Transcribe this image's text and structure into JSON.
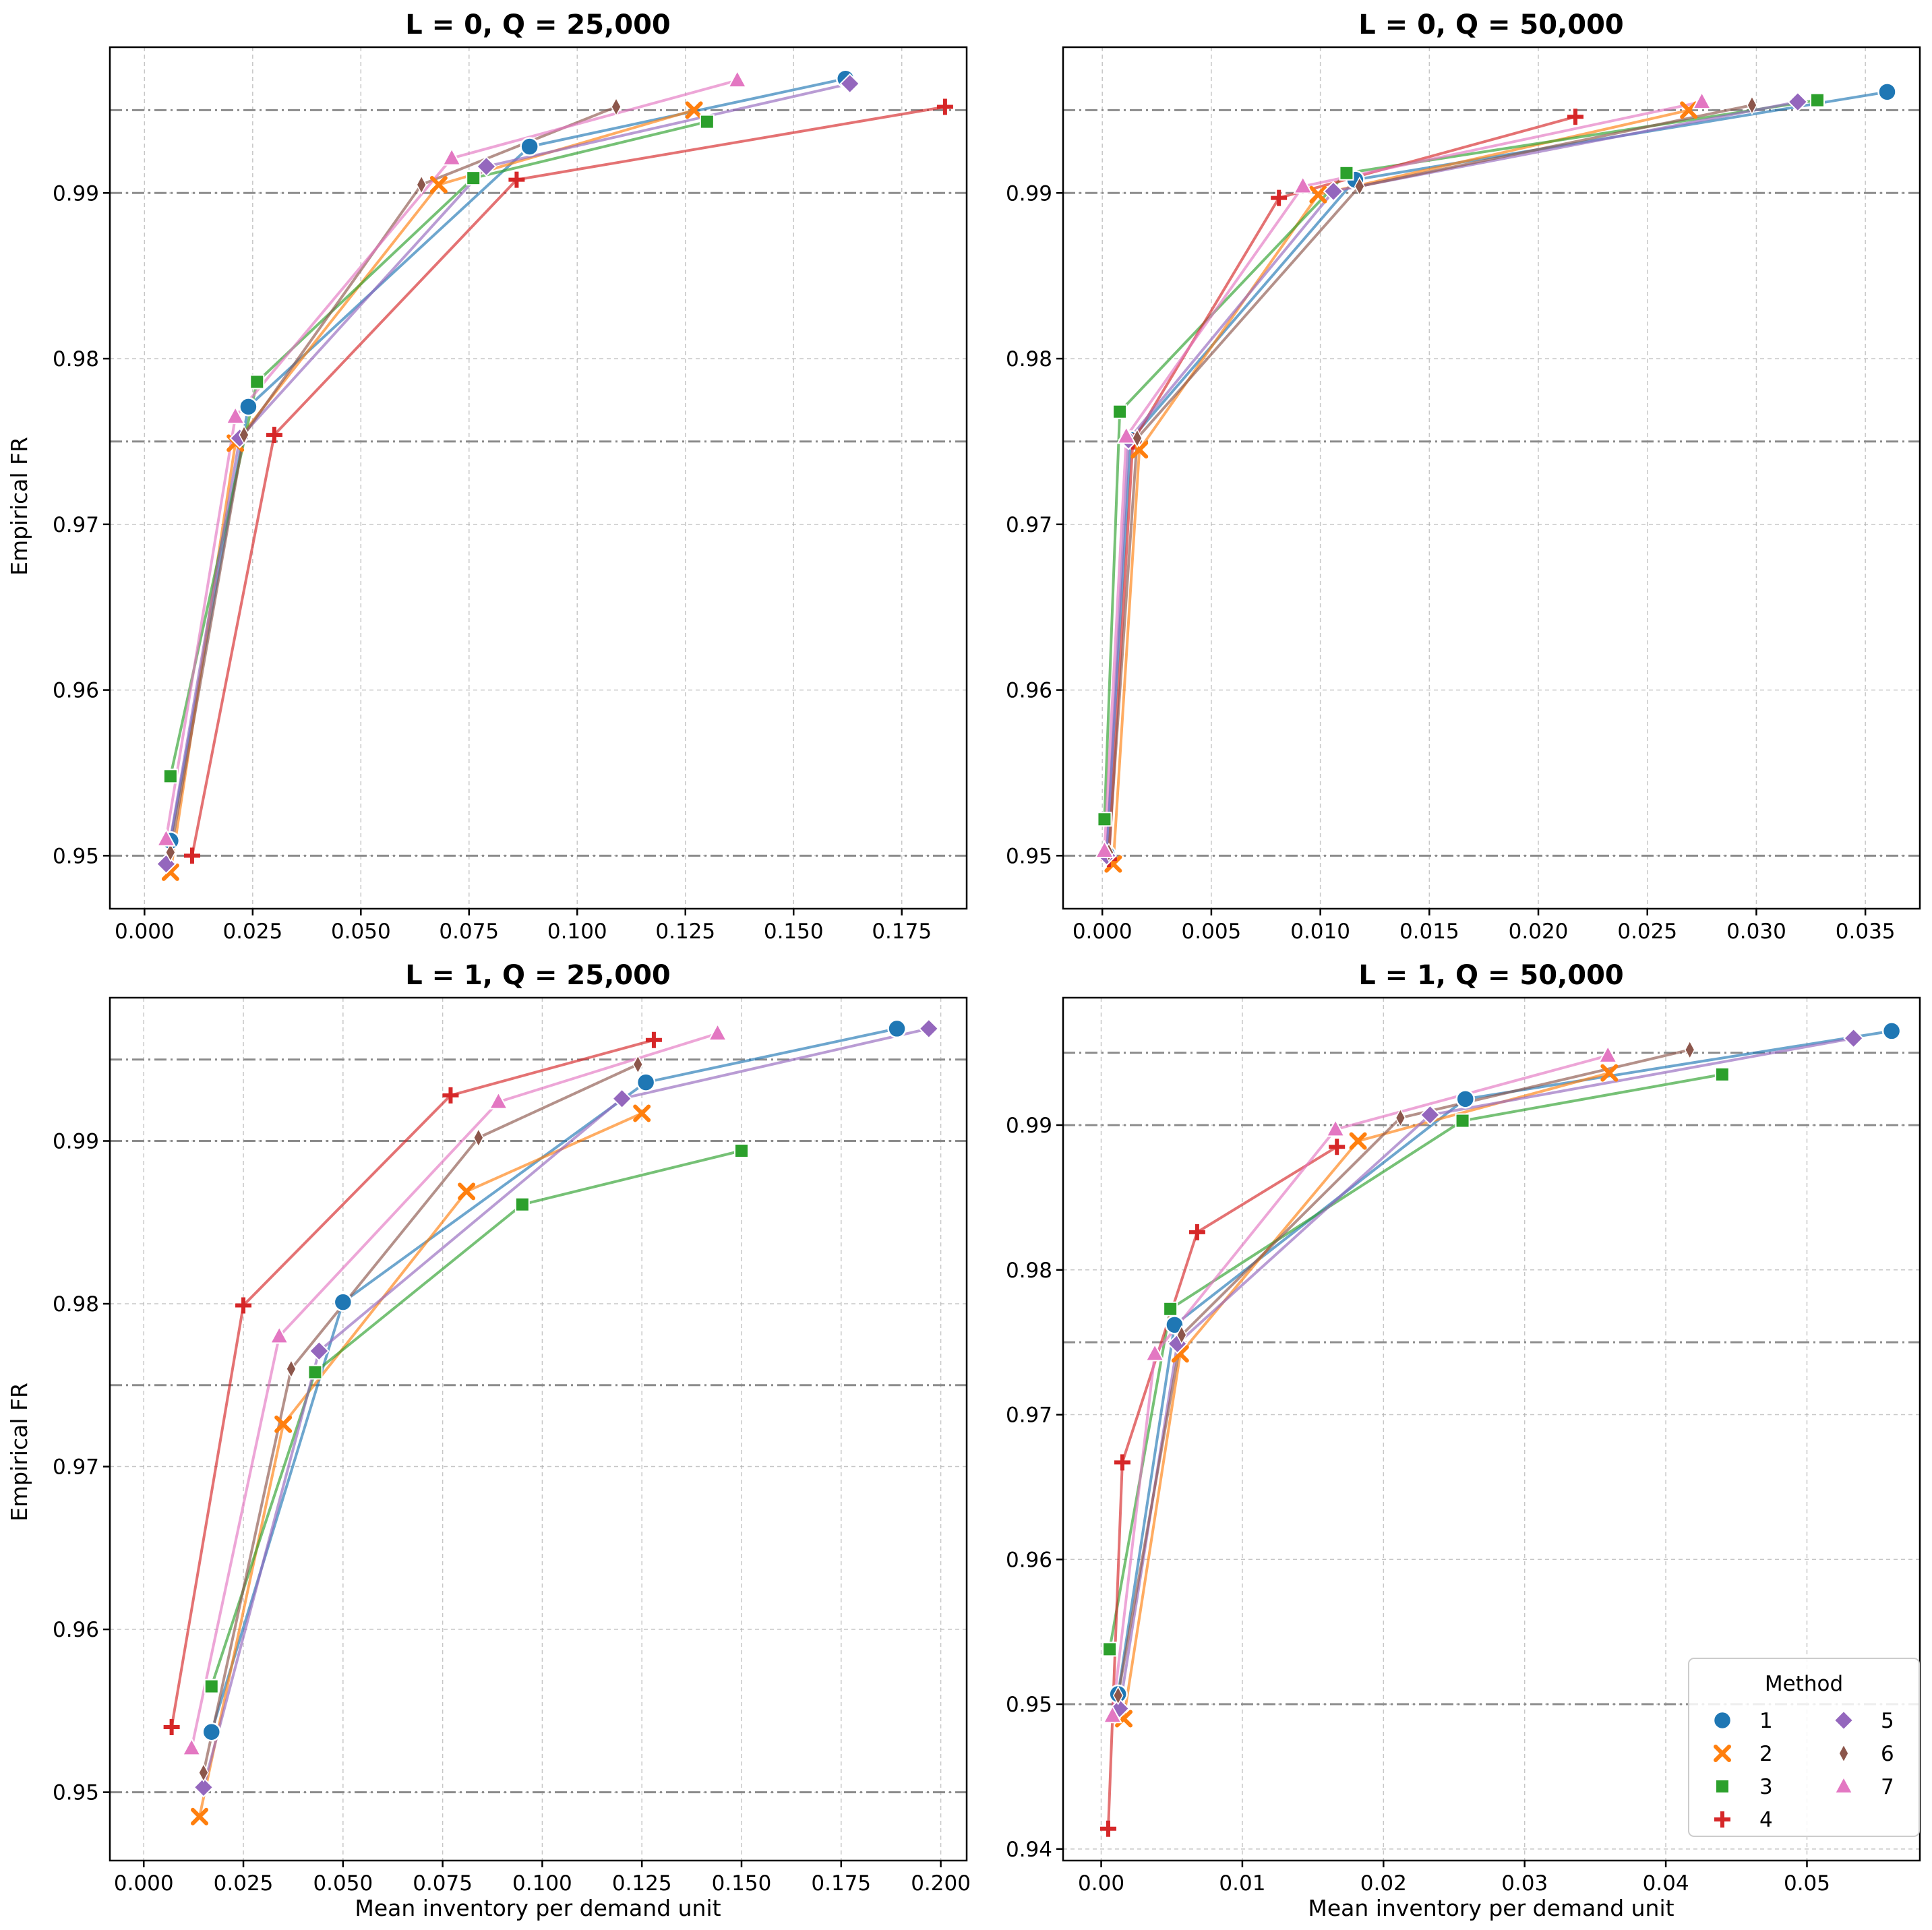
{
  "legend": {
    "title": "Method",
    "placement": "lower right of bottom-right panel"
  },
  "methods": [
    {
      "name": "1",
      "color": "#1f77b4",
      "marker": "circle"
    },
    {
      "name": "2",
      "color": "#ff7f0e",
      "marker": "x"
    },
    {
      "name": "3",
      "color": "#2ca02c",
      "marker": "square"
    },
    {
      "name": "4",
      "color": "#d62728",
      "marker": "plus"
    },
    {
      "name": "5",
      "color": "#9467bd",
      "marker": "diamond"
    },
    {
      "name": "6",
      "color": "#8c564b",
      "marker": "thin-diamond"
    },
    {
      "name": "7",
      "color": "#e377c2",
      "marker": "triangle"
    }
  ],
  "chart_data": [
    {
      "type": "line",
      "title": "L = 0, Q = 25,000",
      "xlabel": "",
      "ylabel": "Empirical FR",
      "xlim": [
        -0.008,
        0.19
      ],
      "ylim": [
        0.9468,
        0.9988
      ],
      "xticks": [
        0.0,
        0.025,
        0.05,
        0.075,
        0.1,
        0.125,
        0.15,
        0.175
      ],
      "xtick_labels": [
        "0.000",
        "0.025",
        "0.050",
        "0.075",
        "0.100",
        "0.125",
        "0.150",
        "0.175"
      ],
      "yticks": [
        0.95,
        0.96,
        0.97,
        0.98,
        0.99
      ],
      "ytick_labels": [
        "0.95",
        "0.96",
        "0.97",
        "0.98",
        "0.99"
      ],
      "hlines": [
        0.95,
        0.975,
        0.99,
        0.995
      ],
      "grid": true,
      "series": [
        {
          "name": "1",
          "x": [
            0.006,
            0.024,
            0.089,
            0.162
          ],
          "y": [
            0.9509,
            0.9771,
            0.9928,
            0.9969
          ]
        },
        {
          "name": "2",
          "x": [
            0.006,
            0.021,
            0.068,
            0.127
          ],
          "y": [
            0.949,
            0.9749,
            0.9905,
            0.995
          ]
        },
        {
          "name": "3",
          "x": [
            0.006,
            0.026,
            0.076,
            0.13
          ],
          "y": [
            0.9548,
            0.9786,
            0.9909,
            0.9943
          ]
        },
        {
          "name": "4",
          "x": [
            0.011,
            0.03,
            0.086,
            0.185
          ],
          "y": [
            0.95,
            0.9754,
            0.9908,
            0.9952
          ]
        },
        {
          "name": "5",
          "x": [
            0.005,
            0.022,
            0.079,
            0.163
          ],
          "y": [
            0.9495,
            0.9752,
            0.9916,
            0.9966
          ]
        },
        {
          "name": "6",
          "x": [
            0.006,
            0.023,
            0.064,
            0.109
          ],
          "y": [
            0.9502,
            0.9754,
            0.9905,
            0.9952
          ]
        },
        {
          "name": "7",
          "x": [
            0.005,
            0.021,
            0.071,
            0.137
          ],
          "y": [
            0.951,
            0.9765,
            0.9921,
            0.9968
          ]
        }
      ]
    },
    {
      "type": "line",
      "title": "L = 0, Q = 50,000",
      "xlabel": "",
      "ylabel": "",
      "xlim": [
        -0.0018,
        0.0375
      ],
      "ylim": [
        0.9468,
        0.9988
      ],
      "xticks": [
        0.0,
        0.005,
        0.01,
        0.015,
        0.02,
        0.025,
        0.03,
        0.035
      ],
      "xtick_labels": [
        "0.000",
        "0.005",
        "0.010",
        "0.015",
        "0.020",
        "0.025",
        "0.030",
        "0.035"
      ],
      "yticks": [
        0.95,
        0.96,
        0.97,
        0.98,
        0.99
      ],
      "ytick_labels": [
        "0.95",
        "0.96",
        "0.97",
        "0.98",
        "0.99"
      ],
      "hlines": [
        0.95,
        0.975,
        0.99,
        0.995
      ],
      "grid": true,
      "series": [
        {
          "name": "1",
          "x": [
            0.0002,
            0.0013,
            0.0116,
            0.036
          ],
          "y": [
            0.9501,
            0.9751,
            0.9908,
            0.9961
          ]
        },
        {
          "name": "2",
          "x": [
            0.0005,
            0.0017,
            0.0099,
            0.0269
          ],
          "y": [
            0.9495,
            0.9745,
            0.9899,
            0.995
          ]
        },
        {
          "name": "3",
          "x": [
            0.0001,
            0.0008,
            0.0112,
            0.0328
          ],
          "y": [
            0.9522,
            0.9768,
            0.9912,
            0.9956
          ]
        },
        {
          "name": "4",
          "x": [
            0.0003,
            0.0014,
            0.0081,
            0.0217
          ],
          "y": [
            0.9498,
            0.975,
            0.9897,
            0.9946
          ]
        },
        {
          "name": "5",
          "x": [
            0.0002,
            0.0012,
            0.0106,
            0.0319
          ],
          "y": [
            0.95,
            0.9751,
            0.9901,
            0.9955
          ]
        },
        {
          "name": "6",
          "x": [
            0.0003,
            0.0016,
            0.0118,
            0.0298
          ],
          "y": [
            0.9502,
            0.9752,
            0.9904,
            0.9953
          ]
        },
        {
          "name": "7",
          "x": [
            0.0001,
            0.0011,
            0.0092,
            0.0275
          ],
          "y": [
            0.9503,
            0.9753,
            0.9904,
            0.9955
          ]
        }
      ]
    },
    {
      "type": "line",
      "title": "L = 1, Q = 25,000",
      "xlabel": "Mean inventory per demand unit",
      "ylabel": "Empirical FR",
      "xlim": [
        -0.0085,
        0.2065
      ],
      "ylim": [
        0.9458,
        0.9988
      ],
      "xticks": [
        0.0,
        0.025,
        0.05,
        0.075,
        0.1,
        0.125,
        0.15,
        0.175,
        0.2
      ],
      "xtick_labels": [
        "0.000",
        "0.025",
        "0.050",
        "0.075",
        "0.100",
        "0.125",
        "0.150",
        "0.175",
        "0.200"
      ],
      "yticks": [
        0.95,
        0.96,
        0.97,
        0.98,
        0.99
      ],
      "ytick_labels": [
        "0.95",
        "0.96",
        "0.97",
        "0.98",
        "0.99"
      ],
      "hlines": [
        0.95,
        0.975,
        0.99,
        0.995
      ],
      "grid": true,
      "series": [
        {
          "name": "1",
          "x": [
            0.017,
            0.05,
            0.126,
            0.189
          ],
          "y": [
            0.9537,
            0.9801,
            0.9936,
            0.9969
          ]
        },
        {
          "name": "2",
          "x": [
            0.014,
            0.035,
            0.081,
            0.125
          ],
          "y": [
            0.9485,
            0.9726,
            0.9869,
            0.9917
          ]
        },
        {
          "name": "3",
          "x": [
            0.017,
            0.043,
            0.095,
            0.15
          ],
          "y": [
            0.9565,
            0.9758,
            0.9861,
            0.9894
          ]
        },
        {
          "name": "4",
          "x": [
            0.007,
            0.025,
            0.077,
            0.128
          ],
          "y": [
            0.954,
            0.9799,
            0.9928,
            0.9962
          ]
        },
        {
          "name": "5",
          "x": [
            0.015,
            0.044,
            0.12,
            0.197
          ],
          "y": [
            0.9503,
            0.9771,
            0.9926,
            0.9969
          ]
        },
        {
          "name": "6",
          "x": [
            0.015,
            0.037,
            0.084,
            0.124
          ],
          "y": [
            0.9512,
            0.976,
            0.9902,
            0.9947
          ]
        },
        {
          "name": "7",
          "x": [
            0.012,
            0.034,
            0.089,
            0.144
          ],
          "y": [
            0.9527,
            0.978,
            0.9924,
            0.9966
          ]
        }
      ]
    },
    {
      "type": "line",
      "title": "L = 1, Q = 50,000",
      "xlabel": "Mean inventory per demand unit",
      "ylabel": "",
      "xlim": [
        -0.0027,
        0.058
      ],
      "ylim": [
        0.9392,
        0.9988
      ],
      "xticks": [
        0.0,
        0.01,
        0.02,
        0.03,
        0.04,
        0.05
      ],
      "xtick_labels": [
        "0.00",
        "0.01",
        "0.02",
        "0.03",
        "0.04",
        "0.05"
      ],
      "yticks": [
        0.94,
        0.95,
        0.96,
        0.97,
        0.98,
        0.99
      ],
      "ytick_labels": [
        "0.94",
        "0.95",
        "0.96",
        "0.97",
        "0.98",
        "0.99"
      ],
      "hlines": [
        0.95,
        0.975,
        0.99,
        0.995
      ],
      "grid": true,
      "series": [
        {
          "name": "1",
          "x": [
            0.0012,
            0.0052,
            0.0258,
            0.056
          ],
          "y": [
            0.9507,
            0.9762,
            0.9918,
            0.9965
          ]
        },
        {
          "name": "2",
          "x": [
            0.0016,
            0.0056,
            0.0182,
            0.036
          ],
          "y": [
            0.949,
            0.9742,
            0.9889,
            0.9936
          ]
        },
        {
          "name": "3",
          "x": [
            0.0006,
            0.0049,
            0.0256,
            0.044
          ],
          "y": [
            0.9538,
            0.9773,
            0.9903,
            0.9935
          ]
        },
        {
          "name": "4",
          "x": [
            0.0005,
            0.0015,
            0.0068,
            0.0167
          ],
          "y": [
            0.9414,
            0.9667,
            0.9826,
            0.9885
          ]
        },
        {
          "name": "5",
          "x": [
            0.0013,
            0.0054,
            0.0233,
            0.0533
          ],
          "y": [
            0.9497,
            0.9749,
            0.9907,
            0.996
          ]
        },
        {
          "name": "6",
          "x": [
            0.0012,
            0.0057,
            0.0212,
            0.0417
          ],
          "y": [
            0.9506,
            0.9755,
            0.9905,
            0.9952
          ]
        },
        {
          "name": "7",
          "x": [
            0.0008,
            0.0038,
            0.0166,
            0.0359
          ],
          "y": [
            0.9492,
            0.9742,
            0.9897,
            0.9948
          ]
        }
      ]
    }
  ]
}
